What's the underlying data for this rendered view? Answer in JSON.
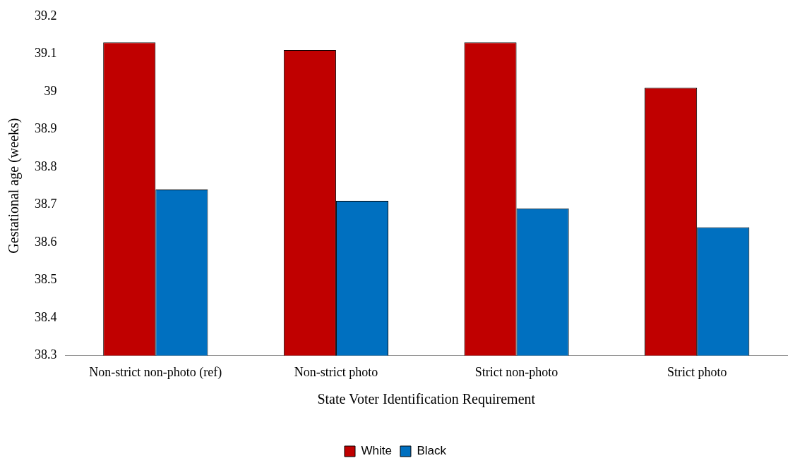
{
  "chart_data": {
    "type": "bar",
    "xlabel": "State Voter Identification Requirement",
    "ylabel": "Gestational age (weeks)",
    "categories": [
      "Non-strict non-photo (ref)",
      "Non-strict photo",
      "Strict non-photo",
      "Strict photo"
    ],
    "series": [
      {
        "name": "White",
        "color": "#c00000",
        "values": [
          39.13,
          39.11,
          39.13,
          39.01
        ]
      },
      {
        "name": "Black",
        "color": "#0070c0",
        "values": [
          38.74,
          38.71,
          38.69,
          38.64
        ]
      }
    ],
    "ylim": [
      38.3,
      39.2
    ],
    "yticks": [
      38.3,
      38.4,
      38.5,
      38.6,
      38.7,
      38.8,
      38.9,
      39,
      39.1,
      39.2
    ],
    "grid": false,
    "legend": "bottom"
  }
}
